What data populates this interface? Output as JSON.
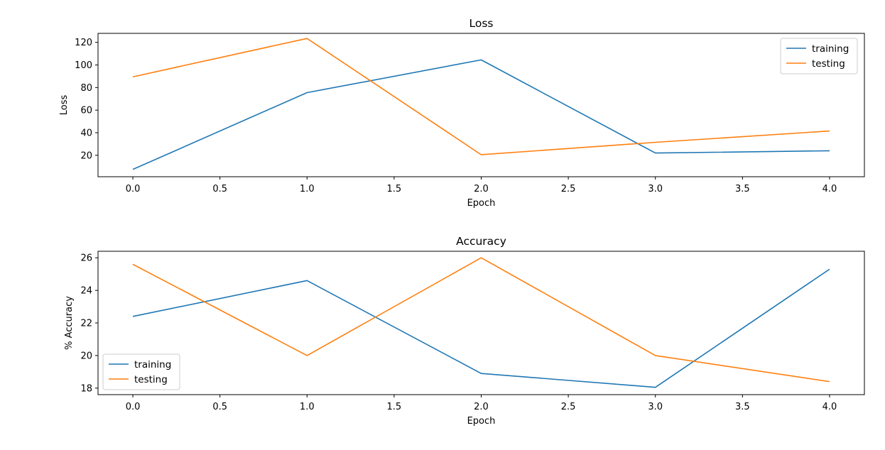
{
  "chart_data": [
    {
      "type": "line",
      "title": "Loss",
      "xlabel": "Epoch",
      "ylabel": "Loss",
      "x": [
        0,
        1,
        2,
        3,
        4
      ],
      "xlim": [
        -0.2,
        4.2
      ],
      "ylim": [
        1,
        128
      ],
      "xticks": [
        "0.0",
        "0.5",
        "1.0",
        "1.5",
        "2.0",
        "2.5",
        "3.0",
        "3.5",
        "4.0"
      ],
      "yticks": [
        "20",
        "40",
        "60",
        "80",
        "100",
        "120"
      ],
      "grid": false,
      "legend": "top-right",
      "series": [
        {
          "name": "training",
          "color": "#1f77b4",
          "values": [
            7.5,
            75.5,
            104.5,
            22.0,
            24.0
          ]
        },
        {
          "name": "testing",
          "color": "#ff7f0e",
          "values": [
            89.5,
            123.5,
            20.5,
            31.5,
            41.5
          ]
        }
      ]
    },
    {
      "type": "line",
      "title": "Accuracy",
      "xlabel": "Epoch",
      "ylabel": "% Accuracy",
      "x": [
        0,
        1,
        2,
        3,
        4
      ],
      "xlim": [
        -0.2,
        4.2
      ],
      "ylim": [
        17.6,
        26.4
      ],
      "xticks": [
        "0.0",
        "0.5",
        "1.0",
        "1.5",
        "2.0",
        "2.5",
        "3.0",
        "3.5",
        "4.0"
      ],
      "yticks": [
        "18",
        "20",
        "22",
        "24",
        "26"
      ],
      "grid": false,
      "legend": "bottom-left",
      "series": [
        {
          "name": "training",
          "color": "#1f77b4",
          "values": [
            22.4,
            24.6,
            18.9,
            18.05,
            25.3
          ]
        },
        {
          "name": "testing",
          "color": "#ff7f0e",
          "values": [
            25.6,
            20.0,
            26.0,
            20.0,
            18.4
          ]
        }
      ]
    }
  ]
}
